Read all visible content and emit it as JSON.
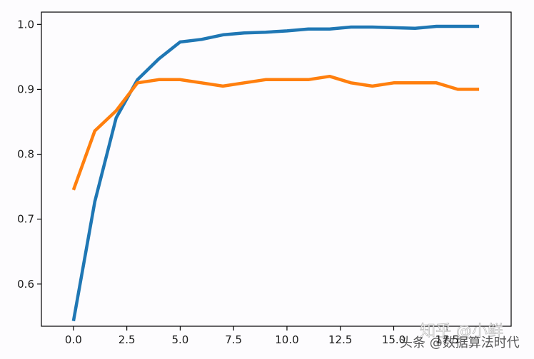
{
  "chart_data": {
    "type": "line",
    "title": "",
    "xlabel": "",
    "ylabel": "",
    "xlim": [
      -1.5,
      20.5
    ],
    "ylim": [
      0.535,
      1.019
    ],
    "xticks": [
      0.0,
      2.5,
      5.0,
      7.5,
      10.0,
      12.5,
      15.0,
      17.5
    ],
    "xtick_labels": [
      "0.0",
      "2.5",
      "5.0",
      "7.5",
      "10.0",
      "12.5",
      "15.0",
      "17.5"
    ],
    "yticks": [
      0.6,
      0.7,
      0.8,
      0.9,
      1.0
    ],
    "ytick_labels": [
      "0.6",
      "0.7",
      "0.8",
      "0.9",
      "1.0"
    ],
    "grid": false,
    "legend": "none",
    "x": [
      0,
      1,
      2,
      3,
      4,
      5,
      6,
      7,
      8,
      9,
      10,
      11,
      12,
      13,
      14,
      15,
      16,
      17,
      18,
      19
    ],
    "series": [
      {
        "color": "#1f77b4",
        "values": [
          0.543,
          0.727,
          0.856,
          0.915,
          0.947,
          0.973,
          0.977,
          0.984,
          0.987,
          0.988,
          0.99,
          0.993,
          0.993,
          0.996,
          0.996,
          0.995,
          0.994,
          0.997,
          0.997,
          0.997
        ]
      },
      {
        "color": "#ff7f0e",
        "values": [
          0.745,
          0.836,
          0.867,
          0.91,
          0.915,
          0.915,
          0.91,
          0.905,
          0.91,
          0.915,
          0.915,
          0.915,
          0.92,
          0.91,
          0.905,
          0.91,
          0.91,
          0.91,
          0.9,
          0.9
        ]
      }
    ]
  },
  "watermark": {
    "line1": "知乎 @小鲜",
    "line2": "头条 @数据算法时代"
  }
}
